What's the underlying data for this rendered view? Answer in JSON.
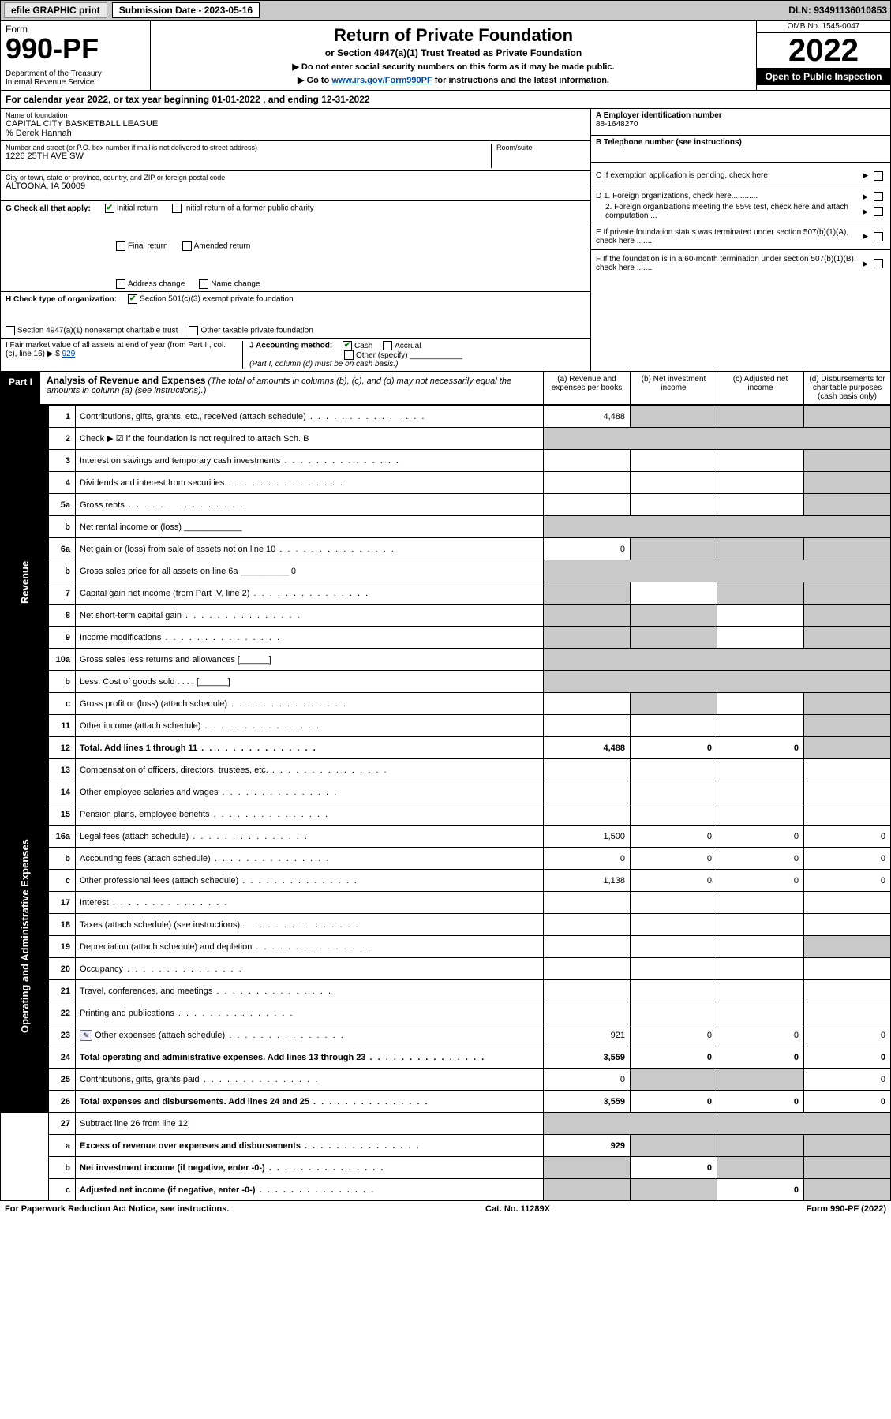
{
  "topbar": {
    "efile": "efile GRAPHIC print",
    "submission_label": "Submission Date - 2023-05-16",
    "dln": "DLN: 93491136010853"
  },
  "header": {
    "form_word": "Form",
    "form_num": "990-PF",
    "dept": "Department of the Treasury\nInternal Revenue Service",
    "title": "Return of Private Foundation",
    "subtitle": "or Section 4947(a)(1) Trust Treated as Private Foundation",
    "note1": "▶ Do not enter social security numbers on this form as it may be made public.",
    "note2_pre": "▶ Go to ",
    "note2_link": "www.irs.gov/Form990PF",
    "note2_post": " for instructions and the latest information.",
    "omb": "OMB No. 1545-0047",
    "year": "2022",
    "open": "Open to Public Inspection"
  },
  "calyear": "For calendar year 2022, or tax year beginning 01-01-2022            , and ending 12-31-2022",
  "entity": {
    "name_label": "Name of foundation",
    "name": "CAPITAL CITY BASKETBALL LEAGUE",
    "care_of": "% Derek Hannah",
    "addr_label": "Number and street (or P.O. box number if mail is not delivered to street address)",
    "addr": "1226 25TH AVE SW",
    "room_label": "Room/suite",
    "city_label": "City or town, state or province, country, and ZIP or foreign postal code",
    "city": "ALTOONA, IA  50009",
    "ein_label": "A Employer identification number",
    "ein": "88-1648270",
    "tel_label": "B Telephone number (see instructions)",
    "c_label": "C If exemption application is pending, check here",
    "d1_label": "D 1. Foreign organizations, check here............",
    "d2_label": "2. Foreign organizations meeting the 85% test, check here and attach computation ...",
    "e_label": "E If private foundation status was terminated under section 507(b)(1)(A), check here .......",
    "f_label": "F If the foundation is in a 60-month termination under section 507(b)(1)(B), check here .......",
    "g_label": "G Check all that apply:",
    "g_opts": [
      "Initial return",
      "Initial return of a former public charity",
      "Final return",
      "Amended return",
      "Address change",
      "Name change"
    ],
    "h_label": "H Check type of organization:",
    "h_opts": [
      "Section 501(c)(3) exempt private foundation",
      "Section 4947(a)(1) nonexempt charitable trust",
      "Other taxable private foundation"
    ],
    "i_label": "I Fair market value of all assets at end of year (from Part II, col. (c), line 16)",
    "i_prefix": "▶ $",
    "i_val": "929",
    "j_label": "J Accounting method:",
    "j_opts": [
      "Cash",
      "Accrual",
      "Other (specify)"
    ],
    "j_note": "(Part I, column (d) must be on cash basis.)"
  },
  "part1": {
    "label": "Part I",
    "title": "Analysis of Revenue and Expenses",
    "title_note": "(The total of amounts in columns (b), (c), and (d) may not necessarily equal the amounts in column (a) (see instructions).)",
    "cols": {
      "a": "(a) Revenue and expenses per books",
      "b": "(b) Net investment income",
      "c": "(c) Adjusted net income",
      "d": "(d) Disbursements for charitable purposes (cash basis only)"
    }
  },
  "sections": {
    "revenue": "Revenue",
    "opex": "Operating and Administrative Expenses"
  },
  "rows": [
    {
      "n": "1",
      "d": "Contributions, gifts, grants, etc., received (attach schedule)",
      "a": "4,488",
      "shade": [
        "b",
        "c",
        "d"
      ]
    },
    {
      "n": "2",
      "d": "Check ▶ ☑ if the foundation is not required to attach Sch. B",
      "nodots": true,
      "shade": [
        "a",
        "b",
        "c",
        "d"
      ],
      "merge": true
    },
    {
      "n": "3",
      "d": "Interest on savings and temporary cash investments",
      "shade": [
        "d"
      ]
    },
    {
      "n": "4",
      "d": "Dividends and interest from securities",
      "shade": [
        "d"
      ]
    },
    {
      "n": "5a",
      "d": "Gross rents",
      "shade": [
        "d"
      ]
    },
    {
      "n": "b",
      "d": "Net rental income or (loss) ____________",
      "shade": [
        "a",
        "b",
        "c",
        "d"
      ],
      "merge": true
    },
    {
      "n": "6a",
      "d": "Net gain or (loss) from sale of assets not on line 10",
      "a": "0",
      "shade": [
        "b",
        "c",
        "d"
      ]
    },
    {
      "n": "b",
      "d": "Gross sales price for all assets on line 6a __________ 0",
      "shade": [
        "a",
        "b",
        "c",
        "d"
      ],
      "merge": true
    },
    {
      "n": "7",
      "d": "Capital gain net income (from Part IV, line 2)",
      "shade": [
        "a",
        "c",
        "d"
      ]
    },
    {
      "n": "8",
      "d": "Net short-term capital gain",
      "shade": [
        "a",
        "b",
        "d"
      ]
    },
    {
      "n": "9",
      "d": "Income modifications",
      "shade": [
        "a",
        "b",
        "d"
      ]
    },
    {
      "n": "10a",
      "d": "Gross sales less returns and allowances   [______]",
      "shade": [
        "a",
        "b",
        "c",
        "d"
      ],
      "merge": true
    },
    {
      "n": "b",
      "d": "Less: Cost of goods sold     . . . .   [______]",
      "shade": [
        "a",
        "b",
        "c",
        "d"
      ],
      "merge": true
    },
    {
      "n": "c",
      "d": "Gross profit or (loss) (attach schedule)",
      "shade": [
        "b",
        "d"
      ]
    },
    {
      "n": "11",
      "d": "Other income (attach schedule)",
      "shade": [
        "d"
      ]
    },
    {
      "n": "12",
      "d": "Total. Add lines 1 through 11",
      "bold": true,
      "a": "4,488",
      "b": "0",
      "c": "0",
      "shade": [
        "d"
      ]
    }
  ],
  "exp_rows": [
    {
      "n": "13",
      "d": "Compensation of officers, directors, trustees, etc."
    },
    {
      "n": "14",
      "d": "Other employee salaries and wages"
    },
    {
      "n": "15",
      "d": "Pension plans, employee benefits"
    },
    {
      "n": "16a",
      "d": "Legal fees (attach schedule)",
      "a": "1,500",
      "b": "0",
      "c": "0",
      "dv": "0"
    },
    {
      "n": "b",
      "d": "Accounting fees (attach schedule)",
      "a": "0",
      "b": "0",
      "c": "0",
      "dv": "0"
    },
    {
      "n": "c",
      "d": "Other professional fees (attach schedule)",
      "a": "1,138",
      "b": "0",
      "c": "0",
      "dv": "0"
    },
    {
      "n": "17",
      "d": "Interest"
    },
    {
      "n": "18",
      "d": "Taxes (attach schedule) (see instructions)"
    },
    {
      "n": "19",
      "d": "Depreciation (attach schedule) and depletion",
      "shade": [
        "d"
      ]
    },
    {
      "n": "20",
      "d": "Occupancy"
    },
    {
      "n": "21",
      "d": "Travel, conferences, and meetings"
    },
    {
      "n": "22",
      "d": "Printing and publications"
    },
    {
      "n": "23",
      "d": "Other expenses (attach schedule)",
      "icon": true,
      "a": "921",
      "b": "0",
      "c": "0",
      "dv": "0"
    },
    {
      "n": "24",
      "d": "Total operating and administrative expenses. Add lines 13 through 23",
      "bold": true,
      "a": "3,559",
      "b": "0",
      "c": "0",
      "dv": "0"
    },
    {
      "n": "25",
      "d": "Contributions, gifts, grants paid",
      "a": "0",
      "shade": [
        "b",
        "c"
      ],
      "dv": "0"
    },
    {
      "n": "26",
      "d": "Total expenses and disbursements. Add lines 24 and 25",
      "bold": true,
      "a": "3,559",
      "b": "0",
      "c": "0",
      "dv": "0"
    }
  ],
  "tail_rows": [
    {
      "n": "27",
      "d": "Subtract line 26 from line 12:",
      "shade": [
        "a",
        "b",
        "c",
        "d"
      ],
      "merge": true
    },
    {
      "n": "a",
      "d": "Excess of revenue over expenses and disbursements",
      "bold": true,
      "a": "929",
      "shade": [
        "b",
        "c",
        "d"
      ]
    },
    {
      "n": "b",
      "d": "Net investment income (if negative, enter -0-)",
      "bold": true,
      "shade": [
        "a"
      ],
      "b": "0",
      "shade2": [
        "c",
        "d"
      ]
    },
    {
      "n": "c",
      "d": "Adjusted net income (if negative, enter -0-)",
      "bold": true,
      "shade": [
        "a",
        "b"
      ],
      "c": "0",
      "shade2": [
        "d"
      ]
    }
  ],
  "footer": {
    "left": "For Paperwork Reduction Act Notice, see instructions.",
    "mid": "Cat. No. 11289X",
    "right": "Form 990-PF (2022)"
  },
  "colors": {
    "shade": "#c9c9c9",
    "link": "#004b9b",
    "check": "#0a7a0a"
  }
}
